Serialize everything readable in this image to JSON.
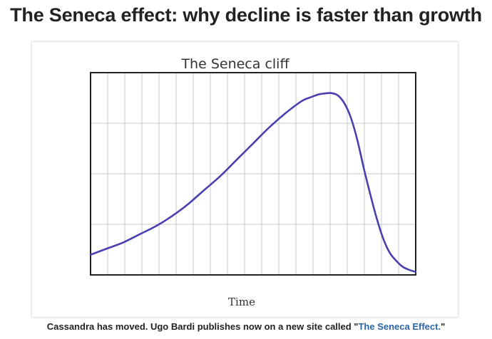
{
  "page": {
    "headline": "The Seneca effect: why decline is faster than growth"
  },
  "caption": {
    "prefix": "Cassandra has moved. Ugo Bardi publishes now on a new site called \"",
    "link_text": "The Seneca Effect.",
    "suffix": "\""
  },
  "colors": {
    "curve": "#4a3fb0",
    "grid": "#c9c9c9",
    "frame": "#222222"
  },
  "chart_data": {
    "type": "line",
    "title": "The Seneca cliff",
    "xlabel": "Time",
    "ylabel": "",
    "xlim": [
      0,
      100
    ],
    "ylim": [
      0,
      100
    ],
    "grid": true,
    "series": [
      {
        "x": [
          0,
          5,
          10,
          15,
          20,
          25,
          30,
          35,
          40,
          45,
          50,
          55,
          60,
          65,
          68,
          70,
          72,
          74,
          76,
          78,
          80,
          82,
          84,
          86,
          88,
          90,
          92,
          94,
          96,
          98,
          100
        ],
        "y": [
          10,
          13,
          16,
          20,
          24,
          29,
          35,
          42,
          49,
          57,
          65,
          73,
          80,
          86,
          88,
          89.2,
          89.7,
          89.9,
          88.8,
          85,
          78,
          67,
          53,
          40,
          28,
          18,
          11,
          7,
          4,
          2.5,
          1.5
        ]
      }
    ]
  }
}
